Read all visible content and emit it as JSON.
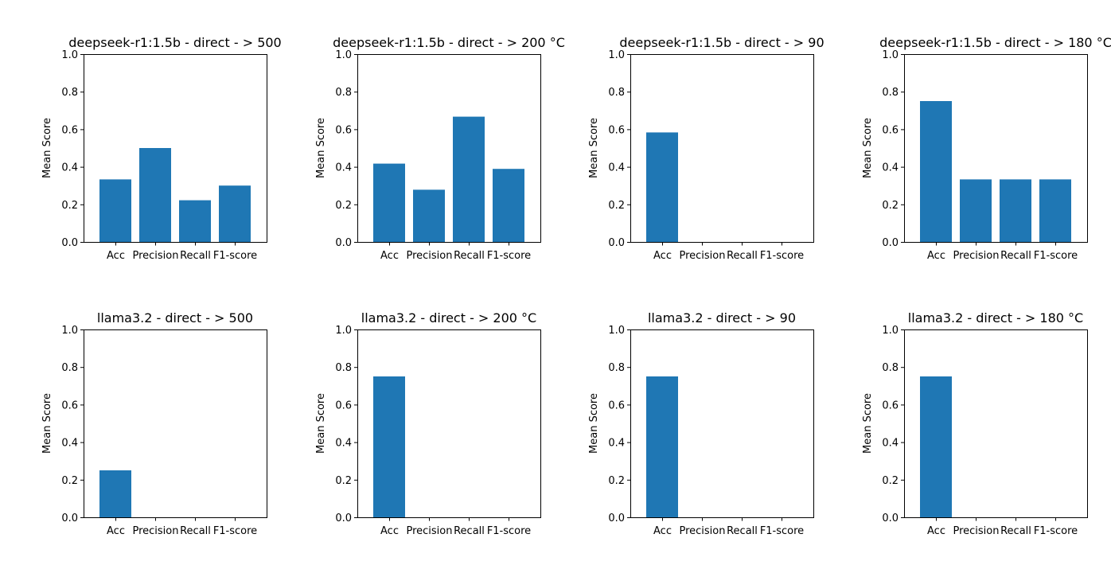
{
  "chart_data": [
    {
      "type": "bar",
      "title": "deepseek-r1:1.5b - direct -  > 500",
      "xlabel": "",
      "ylabel": "Mean Score",
      "categories": [
        "Acc",
        "Precision",
        "Recall",
        "F1-score"
      ],
      "values": [
        0.333,
        0.5,
        0.222,
        0.3
      ],
      "ylim": [
        0,
        1.0
      ],
      "yticks": [
        "0.0",
        "0.2",
        "0.4",
        "0.6",
        "0.8",
        "1.0"
      ],
      "grid": false,
      "color": "#1f77b4"
    },
    {
      "type": "bar",
      "title": "deepseek-r1:1.5b - direct -  > 200 °C",
      "xlabel": "",
      "ylabel": "Mean Score",
      "categories": [
        "Acc",
        "Precision",
        "Recall",
        "F1-score"
      ],
      "values": [
        0.417,
        0.278,
        0.667,
        0.389
      ],
      "ylim": [
        0,
        1.0
      ],
      "yticks": [
        "0.0",
        "0.2",
        "0.4",
        "0.6",
        "0.8",
        "1.0"
      ],
      "grid": false,
      "color": "#1f77b4"
    },
    {
      "type": "bar",
      "title": "deepseek-r1:1.5b - direct -  > 90",
      "xlabel": "",
      "ylabel": "Mean Score",
      "categories": [
        "Acc",
        "Precision",
        "Recall",
        "F1-score"
      ],
      "values": [
        0.583,
        0,
        0,
        0
      ],
      "ylim": [
        0,
        1.0
      ],
      "yticks": [
        "0.0",
        "0.2",
        "0.4",
        "0.6",
        "0.8",
        "1.0"
      ],
      "grid": false,
      "color": "#1f77b4"
    },
    {
      "type": "bar",
      "title": "deepseek-r1:1.5b - direct -  > 180 °C",
      "xlabel": "",
      "ylabel": "Mean Score",
      "categories": [
        "Acc",
        "Precision",
        "Recall",
        "F1-score"
      ],
      "values": [
        0.75,
        0.333,
        0.333,
        0.333
      ],
      "ylim": [
        0,
        1.0
      ],
      "yticks": [
        "0.0",
        "0.2",
        "0.4",
        "0.6",
        "0.8",
        "1.0"
      ],
      "grid": false,
      "color": "#1f77b4"
    },
    {
      "type": "bar",
      "title": "llama3.2 - direct -  > 500",
      "xlabel": "",
      "ylabel": "Mean Score",
      "categories": [
        "Acc",
        "Precision",
        "Recall",
        "F1-score"
      ],
      "values": [
        0.25,
        0,
        0,
        0
      ],
      "ylim": [
        0,
        1.0
      ],
      "yticks": [
        "0.0",
        "0.2",
        "0.4",
        "0.6",
        "0.8",
        "1.0"
      ],
      "grid": false,
      "color": "#1f77b4"
    },
    {
      "type": "bar",
      "title": "llama3.2 - direct -  > 200 °C",
      "xlabel": "",
      "ylabel": "Mean Score",
      "categories": [
        "Acc",
        "Precision",
        "Recall",
        "F1-score"
      ],
      "values": [
        0.75,
        0,
        0,
        0
      ],
      "ylim": [
        0,
        1.0
      ],
      "yticks": [
        "0.0",
        "0.2",
        "0.4",
        "0.6",
        "0.8",
        "1.0"
      ],
      "grid": false,
      "color": "#1f77b4"
    },
    {
      "type": "bar",
      "title": "llama3.2 - direct -  > 90",
      "xlabel": "",
      "ylabel": "Mean Score",
      "categories": [
        "Acc",
        "Precision",
        "Recall",
        "F1-score"
      ],
      "values": [
        0.75,
        0,
        0,
        0
      ],
      "ylim": [
        0,
        1.0
      ],
      "yticks": [
        "0.0",
        "0.2",
        "0.4",
        "0.6",
        "0.8",
        "1.0"
      ],
      "grid": false,
      "color": "#1f77b4"
    },
    {
      "type": "bar",
      "title": "llama3.2 - direct -  > 180 °C",
      "xlabel": "",
      "ylabel": "Mean Score",
      "categories": [
        "Acc",
        "Precision",
        "Recall",
        "F1-score"
      ],
      "values": [
        0.75,
        0,
        0,
        0
      ],
      "ylim": [
        0,
        1.0
      ],
      "yticks": [
        "0.0",
        "0.2",
        "0.4",
        "0.6",
        "0.8",
        "1.0"
      ],
      "grid": false,
      "color": "#1f77b4"
    }
  ]
}
